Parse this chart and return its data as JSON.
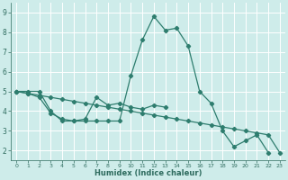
{
  "xlabel": "Humidex (Indice chaleur)",
  "bg_color": "#ceecea",
  "grid_color": "#ffffff",
  "line_color": "#2e7d6e",
  "xlim": [
    -0.5,
    23.5
  ],
  "ylim": [
    1.5,
    9.5
  ],
  "xticks": [
    0,
    1,
    2,
    3,
    4,
    5,
    6,
    7,
    8,
    9,
    10,
    11,
    12,
    13,
    14,
    15,
    16,
    17,
    18,
    19,
    20,
    21,
    22,
    23
  ],
  "yticks": [
    2,
    3,
    4,
    5,
    6,
    7,
    8,
    9
  ],
  "line1_x": [
    0,
    1,
    2,
    3,
    4,
    5,
    6,
    7,
    8,
    9,
    10,
    11,
    12,
    13
  ],
  "line1_y": [
    5.0,
    4.9,
    4.7,
    3.9,
    3.6,
    3.5,
    3.6,
    4.7,
    4.3,
    4.4,
    4.2,
    4.1,
    4.3,
    4.2
  ],
  "line2_x": [
    0,
    1,
    2,
    3,
    4,
    5,
    6,
    7,
    8,
    9,
    10,
    11,
    12,
    13,
    14,
    15,
    16,
    17,
    18,
    19,
    20,
    21,
    22
  ],
  "line2_y": [
    5.0,
    5.0,
    5.0,
    4.0,
    3.5,
    3.5,
    3.5,
    3.5,
    3.5,
    3.5,
    5.8,
    7.6,
    8.8,
    8.1,
    8.2,
    7.3,
    5.0,
    4.4,
    3.0,
    2.2,
    2.5,
    2.8,
    1.9
  ],
  "line3_x": [
    0,
    1,
    2,
    3,
    4,
    5,
    6,
    7,
    8,
    9,
    10,
    11,
    12,
    13,
    14,
    15,
    16,
    17,
    18,
    19,
    20,
    21,
    22,
    23
  ],
  "line3_y": [
    5.0,
    4.9,
    4.8,
    4.7,
    4.6,
    4.5,
    4.4,
    4.3,
    4.2,
    4.1,
    4.0,
    3.9,
    3.8,
    3.7,
    3.6,
    3.5,
    3.4,
    3.3,
    3.2,
    3.1,
    3.0,
    2.9,
    2.8,
    1.9
  ]
}
